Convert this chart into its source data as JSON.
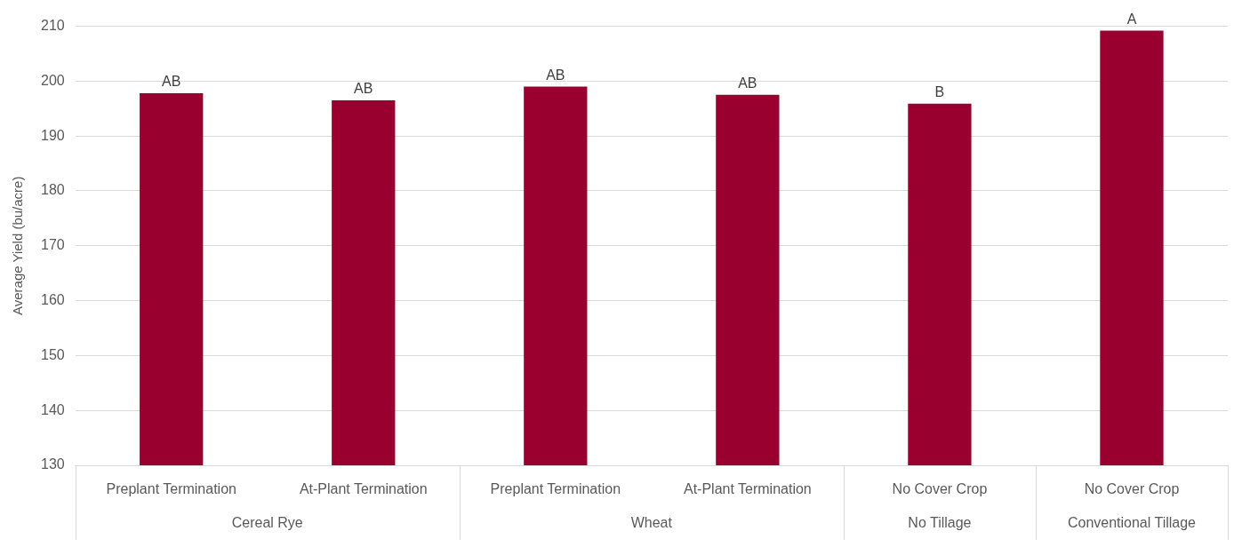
{
  "chart_data": {
    "type": "bar",
    "ylabel": "Average Yield (bu/acre)",
    "categories": [
      "Preplant Termination",
      "At-Plant Termination",
      "Preplant Termination",
      "At-Plant Termination",
      "No Cover Crop",
      "No Cover Crop"
    ],
    "values": [
      197.8,
      196.5,
      199.0,
      197.5,
      195.9,
      209.2
    ],
    "value_labels": [
      "AB",
      "AB",
      "AB",
      "AB",
      "B",
      "A"
    ],
    "color": "#990030",
    "ylim": [
      130,
      210
    ],
    "yticks": [
      130,
      140,
      150,
      160,
      170,
      180,
      190,
      200,
      210
    ],
    "grid": "y",
    "legend": false,
    "annotations": [
      "Cereal Rye",
      "Wheat",
      "No Tillage",
      "Conventional Tillage"
    ]
  }
}
